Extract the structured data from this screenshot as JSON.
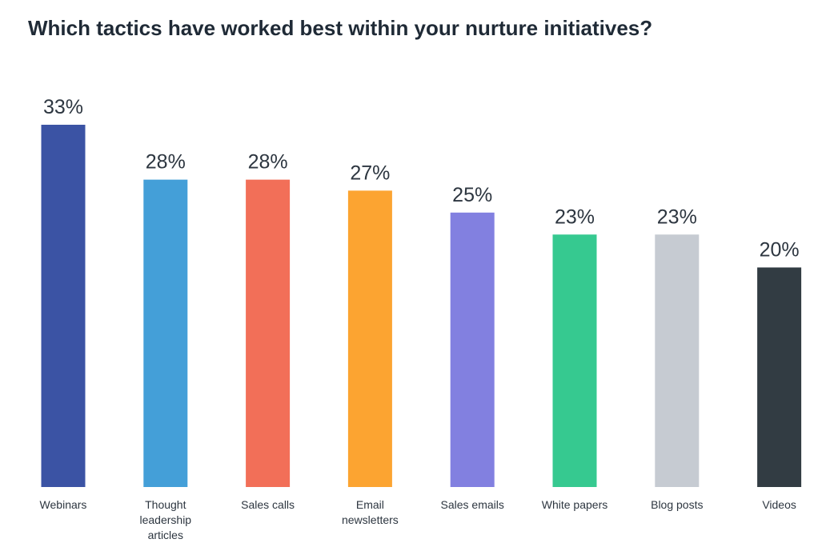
{
  "chart_data": {
    "type": "bar",
    "title": "Which tactics have worked best within your nurture initiatives?",
    "categories": [
      "Webinars",
      "Thought leadership articles",
      "Sales calls",
      "Email newsletters",
      "Sales emails",
      "White papers",
      "Blog posts",
      "Videos"
    ],
    "values": [
      33,
      28,
      28,
      27,
      25,
      23,
      23,
      20
    ],
    "value_labels": [
      "33%",
      "28%",
      "28%",
      "27%",
      "25%",
      "23%",
      "23%",
      "20%"
    ],
    "colors": [
      "#3b53a4",
      "#449fd8",
      "#f26f58",
      "#fca431",
      "#8280e0",
      "#36c990",
      "#c6cbd2",
      "#323c43"
    ]
  }
}
